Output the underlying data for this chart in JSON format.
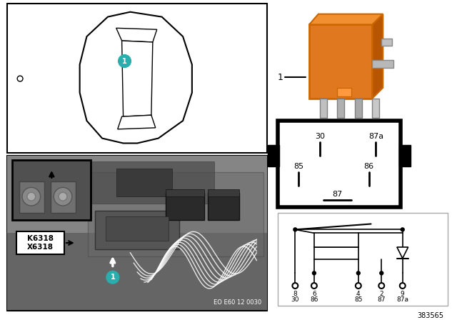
{
  "bg_color": "#ffffff",
  "relay_orange": "#E07820",
  "relay_orange2": "#CC6600",
  "relay_dark": "#1a1a1a",
  "relay_pin_gray": "#9a9a9a",
  "relay_pin_dark": "#6a6a6a",
  "photo_bg": "#787878",
  "photo_bg2": "#606060",
  "inset_bg": "#505050",
  "teal_color": "#2AADAD",
  "white": "#ffffff",
  "black": "#000000",
  "gray_border": "#aaaaaa",
  "gray_light": "#cccccc",
  "part_number": "383565",
  "eo_label": "EO E60 12 0030",
  "label_K": "K6318",
  "label_X": "X6318",
  "pin_box_labels": [
    "30",
    "87a",
    "85",
    "86",
    "87"
  ],
  "schematic_pins_top": [
    "8",
    "6",
    "4",
    "2",
    "9"
  ],
  "schematic_pins_bot": [
    "30",
    "86",
    "85",
    "87",
    "87a"
  ]
}
